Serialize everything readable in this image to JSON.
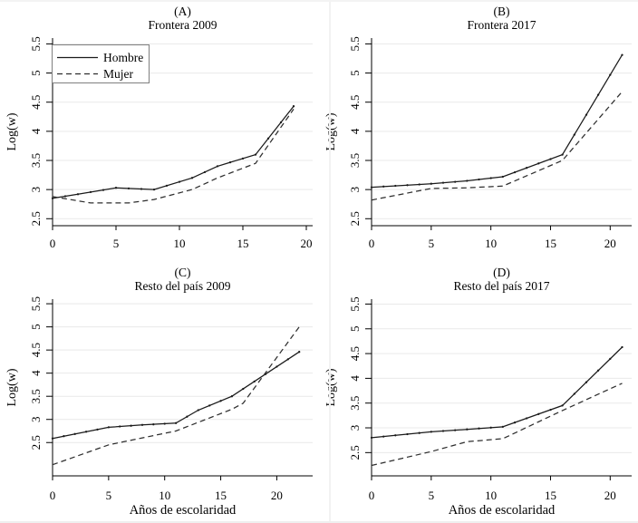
{
  "figure": {
    "background": "#ffffff",
    "text_color": "#000000",
    "grid_color": "#e9e9e9",
    "axis_color": "#000000",
    "solid_color": "#1a1a1a",
    "dashed_color": "#2e2e2e",
    "edge_color": "#f2f2f2",
    "legend": {
      "border_color": "#7f7f7f",
      "fill": "#ffffff",
      "position": "top-left-panel-A",
      "items": [
        {
          "label": "Hombre",
          "style": "solid"
        },
        {
          "label": "Mujer",
          "style": "dashed"
        }
      ]
    }
  },
  "chart_data": [
    {
      "id": "A",
      "type": "line",
      "tag": "(A)",
      "title": "Frontera 2009",
      "ylabel": "Log(w)",
      "xlabel": "",
      "show_xlabel": false,
      "show_legend": true,
      "xlim": [
        0,
        20.5
      ],
      "ylim": [
        2.38,
        5.6
      ],
      "xticks": [
        0,
        5,
        10,
        15,
        20
      ],
      "yticks": [
        2.5,
        3,
        3.5,
        4,
        4.5,
        5,
        5.5
      ],
      "grid": true,
      "series": [
        {
          "name": "Hombre",
          "style": "solid",
          "points": [
            [
              0,
              2.85
            ],
            [
              2,
              2.92
            ],
            [
              5,
              3.03
            ],
            [
              8,
              3.0
            ],
            [
              11,
              3.2
            ],
            [
              13,
              3.4
            ],
            [
              16,
              3.6
            ],
            [
              19,
              4.43
            ]
          ]
        },
        {
          "name": "Mujer",
          "style": "dashed",
          "points": [
            [
              0,
              2.88
            ],
            [
              3,
              2.77
            ],
            [
              6,
              2.77
            ],
            [
              8,
              2.83
            ],
            [
              11,
              3.0
            ],
            [
              13,
              3.2
            ],
            [
              16,
              3.45
            ],
            [
              19,
              4.38
            ]
          ]
        }
      ]
    },
    {
      "id": "B",
      "type": "line",
      "tag": "(B)",
      "title": "Frontera 2017",
      "ylabel": "Log(w)",
      "xlabel": "",
      "show_xlabel": false,
      "show_legend": false,
      "xlim": [
        0,
        21.8
      ],
      "ylim": [
        2.38,
        5.6
      ],
      "xticks": [
        0,
        5,
        10,
        15,
        20
      ],
      "yticks": [
        2.5,
        3,
        3.5,
        4,
        4.5,
        5,
        5.5
      ],
      "grid": true,
      "series": [
        {
          "name": "Hombre",
          "style": "solid",
          "points": [
            [
              0,
              3.04
            ],
            [
              5,
              3.1
            ],
            [
              8,
              3.15
            ],
            [
              11,
              3.22
            ],
            [
              16,
              3.6
            ],
            [
              21,
              5.31
            ]
          ]
        },
        {
          "name": "Mujer",
          "style": "dashed",
          "points": [
            [
              0,
              2.82
            ],
            [
              5,
              3.02
            ],
            [
              8,
              3.03
            ],
            [
              11,
              3.06
            ],
            [
              16,
              3.5
            ],
            [
              21,
              4.68
            ]
          ]
        }
      ]
    },
    {
      "id": "C",
      "type": "line",
      "tag": "(C)",
      "title": "Resto del país 2009",
      "ylabel": "Log(w)",
      "xlabel": "Años de escolaridad",
      "show_xlabel": true,
      "show_legend": false,
      "xlim": [
        0,
        23.2
      ],
      "ylim": [
        1.78,
        5.6
      ],
      "xticks": [
        0,
        5,
        10,
        15,
        20
      ],
      "yticks": [
        2.5,
        3,
        3.5,
        4,
        4.5,
        5,
        5.5
      ],
      "grid": true,
      "series": [
        {
          "name": "Hombre",
          "style": "solid",
          "points": [
            [
              0,
              2.59
            ],
            [
              5,
              2.83
            ],
            [
              8,
              2.88
            ],
            [
              11,
              2.92
            ],
            [
              13,
              3.2
            ],
            [
              16,
              3.5
            ],
            [
              22,
              4.46
            ]
          ]
        },
        {
          "name": "Mujer",
          "style": "dashed",
          "points": [
            [
              0,
              2.02
            ],
            [
              5,
              2.45
            ],
            [
              8,
              2.6
            ],
            [
              11,
              2.75
            ],
            [
              16,
              3.22
            ],
            [
              17,
              3.35
            ],
            [
              22,
              5.0
            ]
          ]
        }
      ]
    },
    {
      "id": "D",
      "type": "line",
      "tag": "(D)",
      "title": "Resto del país 2017",
      "ylabel": "Log(w)",
      "xlabel": "Años de escolaridad",
      "show_xlabel": true,
      "show_legend": false,
      "xlim": [
        0,
        21.8
      ],
      "ylim": [
        2.03,
        5.6
      ],
      "xticks": [
        0,
        5,
        10,
        15,
        20
      ],
      "yticks": [
        2.5,
        3,
        3.5,
        4,
        4.5,
        5,
        5.5
      ],
      "grid": true,
      "series": [
        {
          "name": "Hombre",
          "style": "solid",
          "points": [
            [
              0,
              2.8
            ],
            [
              5,
              2.92
            ],
            [
              8,
              2.97
            ],
            [
              11,
              3.02
            ],
            [
              16,
              3.45
            ],
            [
              21,
              4.63
            ]
          ]
        },
        {
          "name": "Mujer",
          "style": "dashed",
          "points": [
            [
              0,
              2.24
            ],
            [
              5,
              2.52
            ],
            [
              8,
              2.72
            ],
            [
              11,
              2.78
            ],
            [
              16,
              3.35
            ],
            [
              21,
              3.9
            ]
          ]
        }
      ]
    }
  ]
}
